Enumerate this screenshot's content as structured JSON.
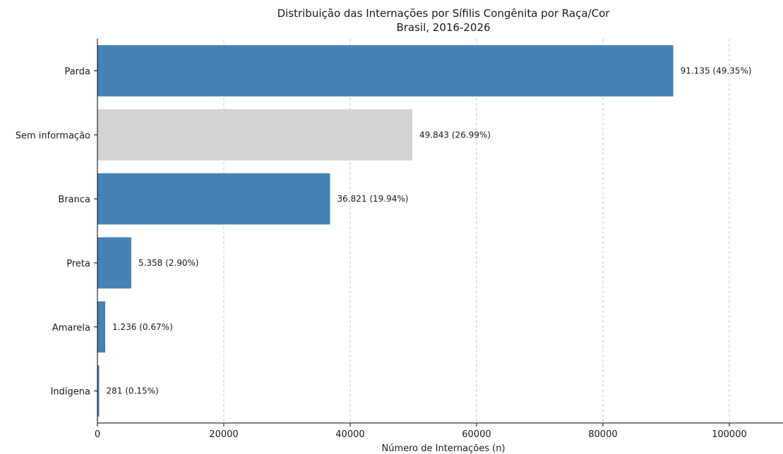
{
  "chart_data": {
    "type": "bar",
    "orientation": "horizontal",
    "title": "Distribuição das Internações por Sífilis Congênita por Raça/Cor",
    "subtitle": "Brasil, 2016-2026",
    "xlabel": "Número de Internações (n)",
    "ylabel": "",
    "xlim": [
      0,
      108500
    ],
    "xticks": [
      0,
      20000,
      40000,
      60000,
      80000,
      100000
    ],
    "xtick_labels": [
      "0",
      "20000",
      "40000",
      "60000",
      "80000",
      "100000"
    ],
    "grid": "x-dashed",
    "categories": [
      "Parda",
      "Sem informação",
      "Branca",
      "Preta",
      "Amarela",
      "Indígena"
    ],
    "values": [
      91135,
      49843,
      36821,
      5358,
      1236,
      281
    ],
    "labels": [
      "91.135 (49.35%)",
      "49.843 (26.99%)",
      "36.821 (19.94%)",
      "5.358 (2.90%)",
      "1.236 (0.67%)",
      "281 (0.15%)"
    ],
    "colors": [
      "#4682b4",
      "#d3d3d3",
      "#4682b4",
      "#4682b4",
      "#4682b4",
      "#4682b4"
    ]
  }
}
